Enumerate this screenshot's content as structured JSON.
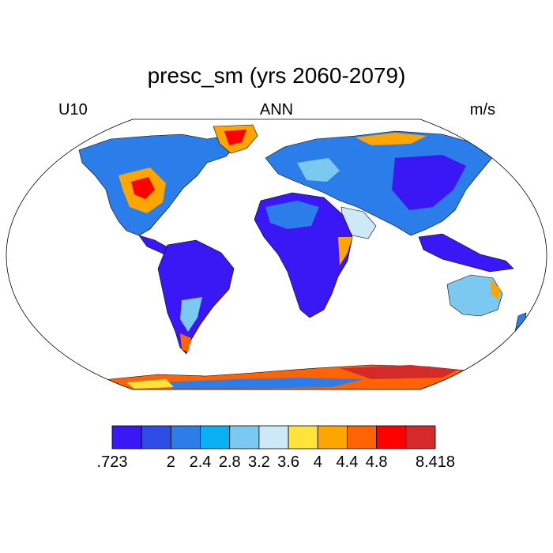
{
  "title": "presc_sm (yrs 2060-2079)",
  "left_label": "U10",
  "center_label": "ANN",
  "right_label": "m/s",
  "colorbar": {
    "labels": [
      ".723",
      "2",
      "2.4",
      "2.8",
      "3.2",
      "3.6",
      "4",
      "4.4",
      "4.8",
      "8.418"
    ],
    "colors": [
      "#3a17f5",
      "#2e4be6",
      "#2b7de9",
      "#0ab0f4",
      "#7bc8f1",
      "#cde8f7",
      "#ffe23a",
      "#ffa500",
      "#ff6303",
      "#ff0000",
      "#d52a2a"
    ]
  },
  "map_colors": {
    "land_dark": "#3a17f5",
    "land_blue": "#2b7de9",
    "land_light": "#7bc8f1",
    "land_yellow": "#ffe23a",
    "land_orange": "#ffa500",
    "land_red": "#ff0000",
    "outline": "#000000",
    "ocean": "#ffffff"
  }
}
